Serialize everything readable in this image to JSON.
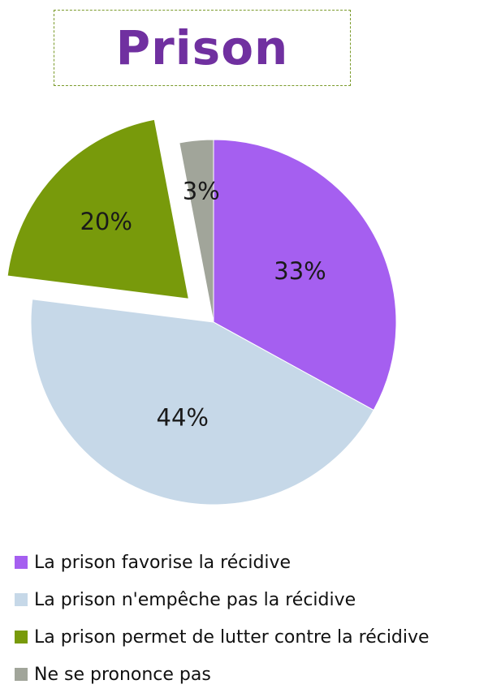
{
  "chart_data": {
    "type": "pie",
    "title": "Prison",
    "slices": [
      {
        "label": "La prison favorise la récidive",
        "value": 33,
        "value_label": "33%",
        "color": "#a55ff0"
      },
      {
        "label": "La prison n'empêche pas la récidive",
        "value": 44,
        "value_label": "44%",
        "color": "#c6d8e8"
      },
      {
        "label": "La prison permet de lutter contre la récidive",
        "value": 20,
        "value_label": "20%",
        "color": "#789a0b",
        "exploded": true
      },
      {
        "label": "Ne se prononce pas",
        "value": 3,
        "value_label": "3%",
        "color": "#a1a59a"
      }
    ],
    "start": "12 o'clock",
    "direction": "clockwise",
    "legend_position": "bottom"
  },
  "colors": {
    "title": "#7030a0",
    "title_border": "#7a9a2a"
  }
}
